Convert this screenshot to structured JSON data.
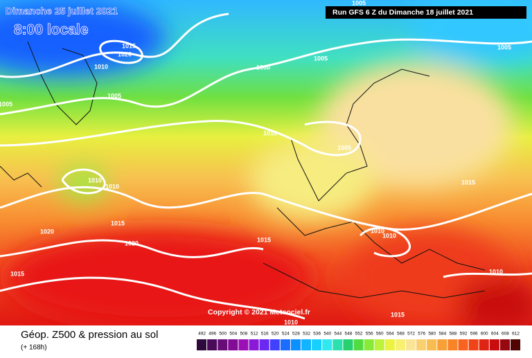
{
  "header": {
    "valid_date": "Dimanche 25 juillet 2021",
    "local_time": "8:00 locale",
    "run": "Run GFS 6 Z du Dimanche 18 juillet 2021"
  },
  "map": {
    "isobar_labels": [
      1015,
      1020,
      1010,
      1005,
      1000,
      1005,
      1005,
      1005,
      1005,
      1010,
      1005,
      1010,
      1010,
      1015,
      1020,
      1015,
      1020,
      1015,
      1010,
      1010,
      1015,
      1010,
      1015,
      1010
    ],
    "copyright": "Copyright © 2021 Meteociel.fr"
  },
  "footer": {
    "title": "Géop. Z500 & pression au sol",
    "lead": "(+ 168h)",
    "scale": {
      "values": [
        492,
        496,
        500,
        504,
        508,
        512,
        516,
        520,
        524,
        528,
        532,
        536,
        540,
        544,
        548,
        552,
        556,
        560,
        564,
        568,
        572,
        576,
        580,
        584,
        588,
        592,
        596,
        600,
        604,
        608,
        612
      ],
      "colors": [
        "#2e0a3c",
        "#4a0a5a",
        "#680c78",
        "#820c96",
        "#9a10b4",
        "#8a1ad8",
        "#6a28f0",
        "#4040ff",
        "#1c6cff",
        "#0a90ff",
        "#10b4ff",
        "#18d0ff",
        "#30e8f0",
        "#2ce0b0",
        "#28d070",
        "#50dc40",
        "#88ea38",
        "#bcf23c",
        "#ecf240",
        "#f8f070",
        "#fae498",
        "#f8d070",
        "#f8bc50",
        "#f8a038",
        "#f88428",
        "#f86420",
        "#f04418",
        "#e02414",
        "#c80c10",
        "#980810",
        "#500404"
      ]
    }
  }
}
